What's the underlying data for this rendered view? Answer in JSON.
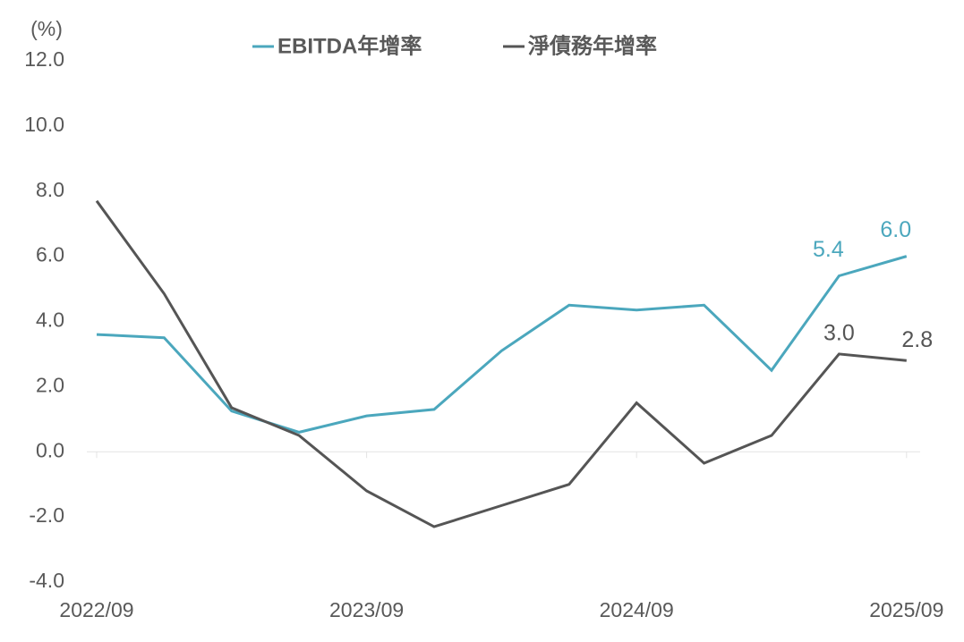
{
  "chart_data": {
    "type": "line",
    "y_unit": "(%)",
    "categories": [
      "2022/09",
      null,
      null,
      null,
      "2023/09",
      null,
      null,
      null,
      "2024/09",
      null,
      null,
      null,
      "2025/09"
    ],
    "series": [
      {
        "name": "EBITDA年增率",
        "color": "#4ba7bd",
        "values": [
          3.6,
          3.5,
          1.25,
          0.6,
          1.1,
          1.3,
          3.1,
          4.5,
          4.35,
          4.5,
          2.5,
          5.4,
          6.0
        ],
        "value_labels": [
          null,
          null,
          null,
          null,
          null,
          null,
          null,
          null,
          null,
          null,
          null,
          "5.4",
          "6.0"
        ]
      },
      {
        "name": "淨債務年增率",
        "color": "#555555",
        "values": [
          7.7,
          4.85,
          1.35,
          0.5,
          -1.2,
          -2.3,
          -1.65,
          -1.0,
          1.5,
          -0.35,
          0.5,
          3.0,
          2.8
        ],
        "value_labels": [
          null,
          null,
          null,
          null,
          null,
          null,
          null,
          null,
          null,
          null,
          null,
          "3.0",
          "2.8"
        ]
      }
    ],
    "ylim": [
      -4,
      12
    ],
    "yticks": [
      {
        "value": -4,
        "label": "-4.0"
      },
      {
        "value": -2,
        "label": "-2.0"
      },
      {
        "value": 0,
        "label": "0.0"
      },
      {
        "value": 2,
        "label": "2.0"
      },
      {
        "value": 4,
        "label": "4.0"
      },
      {
        "value": 6,
        "label": "6.0"
      },
      {
        "value": 8,
        "label": "8.0"
      },
      {
        "value": 10,
        "label": "10.0"
      },
      {
        "value": 12,
        "label": "12.0"
      }
    ]
  }
}
